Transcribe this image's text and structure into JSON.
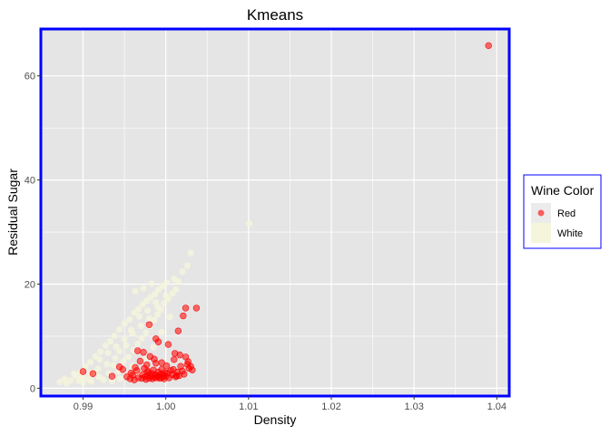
{
  "chart_data": {
    "type": "scatter",
    "title": "Kmeans",
    "xlabel": "Density",
    "ylabel": "Residual Sugar",
    "xlim": [
      0.9849,
      1.0415
    ],
    "ylim": [
      -1.5,
      69
    ],
    "x_ticks": [
      {
        "value": 0.99,
        "label": "0.99"
      },
      {
        "value": 1.0,
        "label": "1.00"
      },
      {
        "value": 1.01,
        "label": "1.01"
      },
      {
        "value": 1.02,
        "label": "1.02"
      },
      {
        "value": 1.03,
        "label": "1.03"
      },
      {
        "value": 1.04,
        "label": "1.04"
      }
    ],
    "y_ticks": [
      {
        "value": 0,
        "label": "0"
      },
      {
        "value": 20,
        "label": "20"
      },
      {
        "value": 40,
        "label": "40"
      },
      {
        "value": 60,
        "label": "60"
      }
    ],
    "grid": true,
    "legend_position": "right",
    "legend": {
      "title": "Wine Color",
      "entries": [
        {
          "label": "Red",
          "color": "#ff0000"
        },
        {
          "label": "White",
          "color": "#f5f5dc"
        }
      ]
    },
    "colors": {
      "panel_bg": "#e5e5e5",
      "grid": "#ffffff",
      "panel_border": "#0000ff",
      "legend_border": "#0000ff"
    },
    "series": [
      {
        "name": "White",
        "color": "#f5f5dc",
        "points": [
          [
            0.9872,
            1.2
          ],
          [
            0.9878,
            1.8
          ],
          [
            0.9885,
            1.5
          ],
          [
            0.9891,
            2.4
          ],
          [
            0.9897,
            3.1
          ],
          [
            0.9903,
            4.2
          ],
          [
            0.9909,
            5.0
          ],
          [
            0.9915,
            6.1
          ],
          [
            0.9921,
            7.0
          ],
          [
            0.9927,
            8.2
          ],
          [
            0.9933,
            9.0
          ],
          [
            0.9938,
            10.1
          ],
          [
            0.9944,
            11.3
          ],
          [
            0.995,
            12.4
          ],
          [
            0.9956,
            13.2
          ],
          [
            0.9962,
            14.5
          ],
          [
            0.9967,
            15.2
          ],
          [
            0.9972,
            16.1
          ],
          [
            0.9977,
            16.8
          ],
          [
            0.9982,
            17.5
          ],
          [
            0.9987,
            18.1
          ],
          [
            0.9991,
            18.9
          ],
          [
            0.9996,
            19.6
          ],
          [
            1.0001,
            20.3
          ],
          [
            0.9889,
            2.8
          ],
          [
            0.9895,
            1.4
          ],
          [
            0.9901,
            2.1
          ],
          [
            0.9907,
            1.7
          ],
          [
            0.9913,
            3.0
          ],
          [
            0.9919,
            2.2
          ],
          [
            0.9925,
            1.6
          ],
          [
            0.9931,
            2.9
          ],
          [
            0.9937,
            4.4
          ],
          [
            0.9943,
            3.3
          ],
          [
            0.9949,
            5.2
          ],
          [
            0.9955,
            6.0
          ],
          [
            0.9961,
            7.3
          ],
          [
            0.9966,
            8.5
          ],
          [
            0.9971,
            9.6
          ],
          [
            0.9976,
            10.7
          ],
          [
            0.9981,
            11.9
          ],
          [
            0.9986,
            13.1
          ],
          [
            0.999,
            14.2
          ],
          [
            0.9994,
            15.1
          ],
          [
            0.9998,
            16.3
          ],
          [
            1.0003,
            17.2
          ],
          [
            1.0008,
            18.2
          ],
          [
            1.0012,
            19.0
          ],
          [
            0.992,
            5.5
          ],
          [
            0.993,
            6.8
          ],
          [
            0.994,
            8.0
          ],
          [
            0.995,
            9.4
          ],
          [
            0.996,
            10.5
          ],
          [
            0.997,
            12.0
          ],
          [
            0.998,
            13.4
          ],
          [
            0.999,
            15.6
          ],
          [
            1.0,
            17.8
          ],
          [
            1.001,
            21.0
          ],
          [
            1.002,
            22.4
          ],
          [
            1.003,
            26.0
          ],
          [
            1.0101,
            31.6
          ],
          [
            1.0026,
            23.5
          ],
          [
            1.0015,
            20.5
          ],
          [
            0.996,
            4.2
          ],
          [
            0.9965,
            3.2
          ],
          [
            0.997,
            2.6
          ],
          [
            0.9935,
            1.4
          ],
          [
            0.9945,
            1.8
          ],
          [
            0.9955,
            2.3
          ],
          [
            0.991,
            1.3
          ],
          [
            0.99,
            1.1
          ],
          [
            0.988,
            0.9
          ],
          [
            0.9944,
            7.1
          ],
          [
            0.9952,
            8.2
          ],
          [
            0.9958,
            11.2
          ],
          [
            0.9968,
            13.8
          ],
          [
            0.9978,
            14.9
          ],
          [
            0.9988,
            16.5
          ],
          [
            0.9939,
            5.8
          ],
          [
            0.9929,
            4.6
          ],
          [
            0.9918,
            3.7
          ],
          [
            0.9908,
            2.9
          ],
          [
            0.9898,
            2.0
          ],
          [
            0.9975,
            5.6
          ],
          [
            0.9985,
            7.9
          ],
          [
            0.9995,
            10.8
          ],
          [
            1.0005,
            13.7
          ],
          [
            0.9963,
            18.6
          ],
          [
            0.9973,
            19.2
          ],
          [
            0.9983,
            20.1
          ]
        ]
      },
      {
        "name": "Red",
        "color": "#ff0000",
        "points": [
          [
            0.99,
            3.2
          ],
          [
            0.9912,
            2.8
          ],
          [
            0.9935,
            2.3
          ],
          [
            0.9944,
            4.1
          ],
          [
            0.9948,
            3.6
          ],
          [
            0.9953,
            2.2
          ],
          [
            0.9957,
            1.8
          ],
          [
            0.996,
            2.5
          ],
          [
            0.9962,
            1.6
          ],
          [
            0.9965,
            3.4
          ],
          [
            0.9967,
            2.0
          ],
          [
            0.9969,
            5.2
          ],
          [
            0.9971,
            1.9
          ],
          [
            0.9972,
            2.6
          ],
          [
            0.9974,
            3.8
          ],
          [
            0.9975,
            2.2
          ],
          [
            0.9976,
            1.7
          ],
          [
            0.9977,
            4.5
          ],
          [
            0.9978,
            2.4
          ],
          [
            0.9979,
            3.0
          ],
          [
            0.998,
            1.9
          ],
          [
            0.9981,
            6.1
          ],
          [
            0.9982,
            2.3
          ],
          [
            0.9983,
            2.8
          ],
          [
            0.9984,
            1.8
          ],
          [
            0.9985,
            3.5
          ],
          [
            0.9986,
            2.1
          ],
          [
            0.9987,
            2.6
          ],
          [
            0.9988,
            4.8
          ],
          [
            0.9989,
            2.0
          ],
          [
            0.999,
            2.4
          ],
          [
            0.9991,
            3.1
          ],
          [
            0.9992,
            2.2
          ],
          [
            0.9993,
            1.9
          ],
          [
            0.9994,
            2.7
          ],
          [
            0.9995,
            3.6
          ],
          [
            0.9996,
            2.1
          ],
          [
            0.9997,
            2.5
          ],
          [
            0.9998,
            1.8
          ],
          [
            0.9999,
            3.0
          ],
          [
            1.0,
            2.3
          ],
          [
            1.0002,
            2.9
          ],
          [
            1.0004,
            2.0
          ],
          [
            1.0006,
            3.4
          ],
          [
            1.0008,
            2.6
          ],
          [
            1.001,
            5.5
          ],
          [
            1.0012,
            2.2
          ],
          [
            1.0014,
            3.1
          ],
          [
            1.0016,
            2.4
          ],
          [
            1.0018,
            4.2
          ],
          [
            1.002,
            3.3
          ],
          [
            1.0022,
            2.7
          ],
          [
            1.0024,
            6.0
          ],
          [
            1.0026,
            4.6
          ],
          [
            1.0028,
            3.8
          ],
          [
            1.003,
            4.2
          ],
          [
            1.0032,
            3.5
          ],
          [
            1.0021,
            13.9
          ],
          [
            1.0024,
            15.4
          ],
          [
            1.0037,
            15.4
          ],
          [
            1.0015,
            11.0
          ],
          [
            0.998,
            12.2
          ],
          [
            0.9991,
            8.9
          ],
          [
            0.9988,
            9.5
          ],
          [
            1.0003,
            8.4
          ],
          [
            1.0011,
            6.7
          ],
          [
            0.9973,
            6.9
          ],
          [
            0.9966,
            7.2
          ],
          [
            1.0001,
            4.3
          ],
          [
            0.9986,
            5.6
          ],
          [
            0.9995,
            4.9
          ],
          [
            0.9978,
            3.3
          ],
          [
            0.9958,
            2.9
          ],
          [
            0.9963,
            4.0
          ],
          [
            1.0009,
            3.6
          ],
          [
            1.0013,
            2.4
          ],
          [
            1.0017,
            6.4
          ],
          [
            1.0027,
            5.1
          ],
          [
            1.039,
            65.8
          ]
        ]
      }
    ]
  }
}
